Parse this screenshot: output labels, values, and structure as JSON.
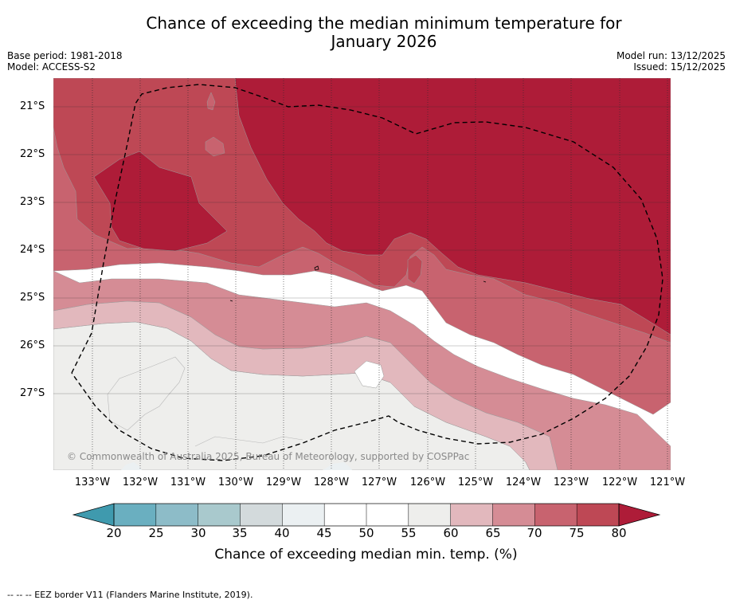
{
  "title_line1": "Chance of exceeding the median minimum temperature for",
  "title_line2": "January 2026",
  "base_period": "Base period: 1981-2018",
  "model": "Model: ACCESS-S2",
  "model_run": "Model run: 13/12/2025",
  "issued": "Issued: 15/12/2025",
  "copyright": "© Commonwealth of Australia 2025, Bureau of Meteorology, supported by COSPPac",
  "latitudes": [
    "21°S",
    "22°S",
    "23°S",
    "24°S",
    "25°S",
    "26°S",
    "27°S"
  ],
  "longitudes": [
    "133°W",
    "132°W",
    "131°W",
    "130°W",
    "129°W",
    "128°W",
    "127°W",
    "126°W",
    "125°W",
    "124°W",
    "123°W",
    "122°W",
    "121°W"
  ],
  "colorbar": {
    "ticks": [
      "20",
      "25",
      "30",
      "35",
      "40",
      "45",
      "50",
      "55",
      "60",
      "65",
      "70",
      "75",
      "80"
    ],
    "colors": [
      "#3f9aae",
      "#6aafc0",
      "#8dbcc8",
      "#a9c9cd",
      "#d3dadc",
      "#ebf0f2",
      "#ffffff",
      "#ffffff",
      "#eeeeec",
      "#e2b8bd",
      "#d58c95",
      "#c8636f",
      "#be4855",
      "#ae1c38"
    ],
    "title": "Chance of exceeding median min. temp. (%)"
  },
  "footnote": "-- --  -- EEZ border V11 (Flanders Marine Institute, 2019)."
}
